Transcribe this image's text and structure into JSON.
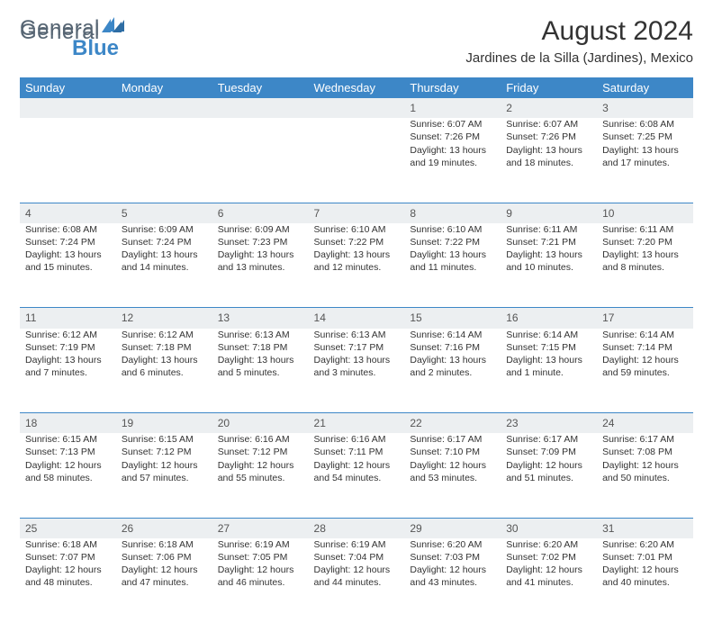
{
  "brand": {
    "part1": "General",
    "part2": "Blue",
    "logo_color": "#3d87c7",
    "text_color": "#566573"
  },
  "header": {
    "title": "August 2024",
    "subtitle": "Jardines de la Silla (Jardines), Mexico"
  },
  "colors": {
    "header_bg": "#3d87c7",
    "header_fg": "#ffffff",
    "daynum_bg": "#eceff1",
    "row_border": "#3d87c7",
    "page_bg": "#ffffff"
  },
  "weekdays": [
    "Sunday",
    "Monday",
    "Tuesday",
    "Wednesday",
    "Thursday",
    "Friday",
    "Saturday"
  ],
  "weeks": [
    [
      null,
      null,
      null,
      null,
      {
        "d": "1",
        "sr": "6:07 AM",
        "ss": "7:26 PM",
        "dl1": "Daylight: 13 hours",
        "dl2": "and 19 minutes."
      },
      {
        "d": "2",
        "sr": "6:07 AM",
        "ss": "7:26 PM",
        "dl1": "Daylight: 13 hours",
        "dl2": "and 18 minutes."
      },
      {
        "d": "3",
        "sr": "6:08 AM",
        "ss": "7:25 PM",
        "dl1": "Daylight: 13 hours",
        "dl2": "and 17 minutes."
      }
    ],
    [
      {
        "d": "4",
        "sr": "6:08 AM",
        "ss": "7:24 PM",
        "dl1": "Daylight: 13 hours",
        "dl2": "and 15 minutes."
      },
      {
        "d": "5",
        "sr": "6:09 AM",
        "ss": "7:24 PM",
        "dl1": "Daylight: 13 hours",
        "dl2": "and 14 minutes."
      },
      {
        "d": "6",
        "sr": "6:09 AM",
        "ss": "7:23 PM",
        "dl1": "Daylight: 13 hours",
        "dl2": "and 13 minutes."
      },
      {
        "d": "7",
        "sr": "6:10 AM",
        "ss": "7:22 PM",
        "dl1": "Daylight: 13 hours",
        "dl2": "and 12 minutes."
      },
      {
        "d": "8",
        "sr": "6:10 AM",
        "ss": "7:22 PM",
        "dl1": "Daylight: 13 hours",
        "dl2": "and 11 minutes."
      },
      {
        "d": "9",
        "sr": "6:11 AM",
        "ss": "7:21 PM",
        "dl1": "Daylight: 13 hours",
        "dl2": "and 10 minutes."
      },
      {
        "d": "10",
        "sr": "6:11 AM",
        "ss": "7:20 PM",
        "dl1": "Daylight: 13 hours",
        "dl2": "and 8 minutes."
      }
    ],
    [
      {
        "d": "11",
        "sr": "6:12 AM",
        "ss": "7:19 PM",
        "dl1": "Daylight: 13 hours",
        "dl2": "and 7 minutes."
      },
      {
        "d": "12",
        "sr": "6:12 AM",
        "ss": "7:18 PM",
        "dl1": "Daylight: 13 hours",
        "dl2": "and 6 minutes."
      },
      {
        "d": "13",
        "sr": "6:13 AM",
        "ss": "7:18 PM",
        "dl1": "Daylight: 13 hours",
        "dl2": "and 5 minutes."
      },
      {
        "d": "14",
        "sr": "6:13 AM",
        "ss": "7:17 PM",
        "dl1": "Daylight: 13 hours",
        "dl2": "and 3 minutes."
      },
      {
        "d": "15",
        "sr": "6:14 AM",
        "ss": "7:16 PM",
        "dl1": "Daylight: 13 hours",
        "dl2": "and 2 minutes."
      },
      {
        "d": "16",
        "sr": "6:14 AM",
        "ss": "7:15 PM",
        "dl1": "Daylight: 13 hours",
        "dl2": "and 1 minute."
      },
      {
        "d": "17",
        "sr": "6:14 AM",
        "ss": "7:14 PM",
        "dl1": "Daylight: 12 hours",
        "dl2": "and 59 minutes."
      }
    ],
    [
      {
        "d": "18",
        "sr": "6:15 AM",
        "ss": "7:13 PM",
        "dl1": "Daylight: 12 hours",
        "dl2": "and 58 minutes."
      },
      {
        "d": "19",
        "sr": "6:15 AM",
        "ss": "7:12 PM",
        "dl1": "Daylight: 12 hours",
        "dl2": "and 57 minutes."
      },
      {
        "d": "20",
        "sr": "6:16 AM",
        "ss": "7:12 PM",
        "dl1": "Daylight: 12 hours",
        "dl2": "and 55 minutes."
      },
      {
        "d": "21",
        "sr": "6:16 AM",
        "ss": "7:11 PM",
        "dl1": "Daylight: 12 hours",
        "dl2": "and 54 minutes."
      },
      {
        "d": "22",
        "sr": "6:17 AM",
        "ss": "7:10 PM",
        "dl1": "Daylight: 12 hours",
        "dl2": "and 53 minutes."
      },
      {
        "d": "23",
        "sr": "6:17 AM",
        "ss": "7:09 PM",
        "dl1": "Daylight: 12 hours",
        "dl2": "and 51 minutes."
      },
      {
        "d": "24",
        "sr": "6:17 AM",
        "ss": "7:08 PM",
        "dl1": "Daylight: 12 hours",
        "dl2": "and 50 minutes."
      }
    ],
    [
      {
        "d": "25",
        "sr": "6:18 AM",
        "ss": "7:07 PM",
        "dl1": "Daylight: 12 hours",
        "dl2": "and 48 minutes."
      },
      {
        "d": "26",
        "sr": "6:18 AM",
        "ss": "7:06 PM",
        "dl1": "Daylight: 12 hours",
        "dl2": "and 47 minutes."
      },
      {
        "d": "27",
        "sr": "6:19 AM",
        "ss": "7:05 PM",
        "dl1": "Daylight: 12 hours",
        "dl2": "and 46 minutes."
      },
      {
        "d": "28",
        "sr": "6:19 AM",
        "ss": "7:04 PM",
        "dl1": "Daylight: 12 hours",
        "dl2": "and 44 minutes."
      },
      {
        "d": "29",
        "sr": "6:20 AM",
        "ss": "7:03 PM",
        "dl1": "Daylight: 12 hours",
        "dl2": "and 43 minutes."
      },
      {
        "d": "30",
        "sr": "6:20 AM",
        "ss": "7:02 PM",
        "dl1": "Daylight: 12 hours",
        "dl2": "and 41 minutes."
      },
      {
        "d": "31",
        "sr": "6:20 AM",
        "ss": "7:01 PM",
        "dl1": "Daylight: 12 hours",
        "dl2": "and 40 minutes."
      }
    ]
  ],
  "labels": {
    "sunrise_prefix": "Sunrise: ",
    "sunset_prefix": "Sunset: "
  }
}
